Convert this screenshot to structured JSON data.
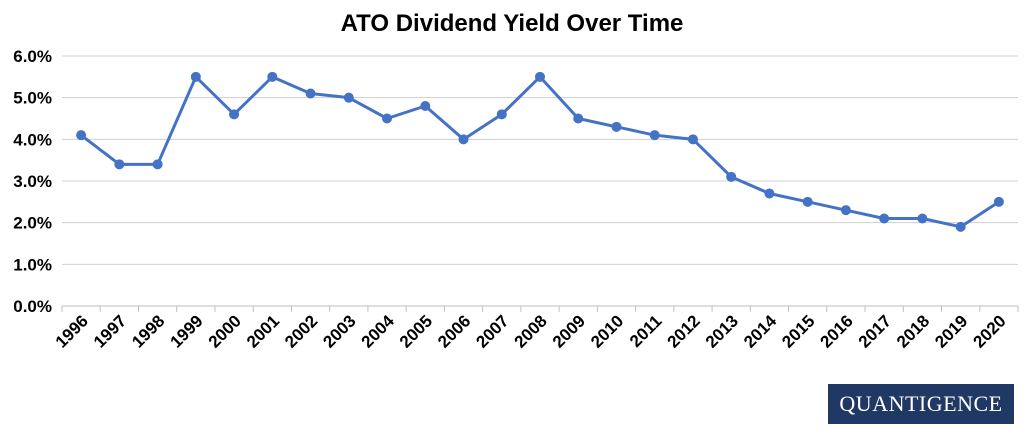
{
  "chart_data": {
    "type": "line",
    "title": "ATO Dividend Yield Over Time",
    "xlabel": "",
    "ylabel": "",
    "categories": [
      "1996",
      "1997",
      "1998",
      "1999",
      "2000",
      "2001",
      "2002",
      "2003",
      "2004",
      "2005",
      "2006",
      "2007",
      "2008",
      "2009",
      "2010",
      "2011",
      "2012",
      "2013",
      "2014",
      "2015",
      "2016",
      "2017",
      "2018",
      "2019",
      "2020"
    ],
    "series": [
      {
        "values": [
          4.1,
          3.4,
          3.4,
          5.5,
          4.6,
          5.5,
          5.1,
          5.0,
          4.5,
          4.8,
          4.0,
          4.6,
          5.5,
          4.5,
          4.3,
          4.1,
          4.0,
          3.1,
          2.7,
          2.5,
          2.3,
          2.1,
          2.1,
          1.9,
          2.5
        ]
      }
    ],
    "ylim": [
      0,
      6
    ],
    "yticks": [
      "0.0%",
      "1.0%",
      "2.0%",
      "3.0%",
      "4.0%",
      "5.0%",
      "6.0%"
    ],
    "grid": true,
    "line_color": "#4472c4",
    "grid_color": "#d0d0d0"
  },
  "logo": {
    "text": "QUANTIGENCE",
    "color": "#1f3864"
  }
}
